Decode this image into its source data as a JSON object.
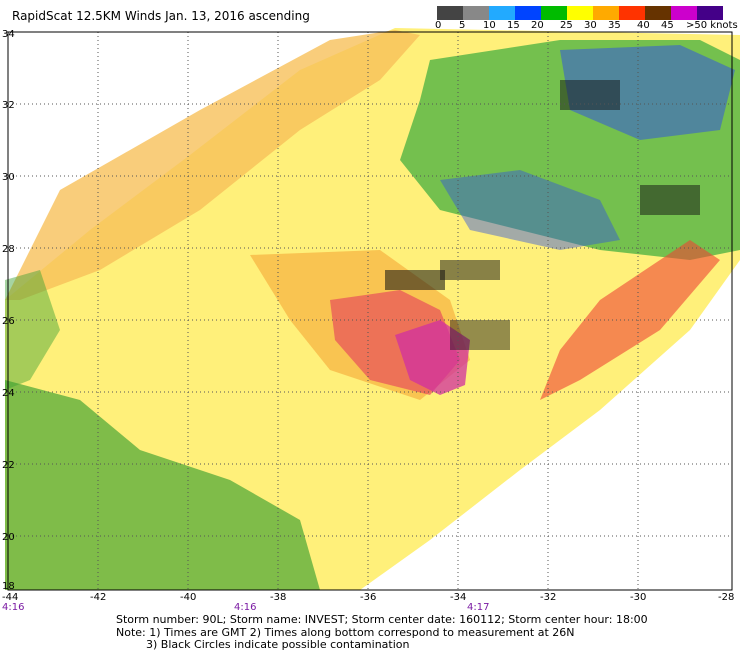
{
  "title": "RapidScat 12.5KM Winds Jan. 13, 2016 ascending",
  "colorbar": {
    "labels": [
      "0",
      "5",
      "10",
      "15",
      "20",
      "25",
      "30",
      "35",
      "40",
      "45",
      ">50 knots"
    ],
    "colors": [
      "#444444",
      "#888888",
      "#22aaff",
      "#0044ff",
      "#00bb00",
      "#ffff00",
      "#ffaa00",
      "#ff3300",
      "#663300",
      "#cc00cc",
      "#440088"
    ]
  },
  "axes": {
    "x_labels": [
      "-44",
      "-42",
      "-40",
      "-38",
      "-36",
      "-34",
      "-32",
      "-30",
      "-28"
    ],
    "y_labels": [
      "34",
      "32",
      "30",
      "28",
      "26",
      "24",
      "22",
      "20",
      "18"
    ]
  },
  "times": [
    "4:16",
    "4:16",
    "4:17"
  ],
  "footer": {
    "line1": "Storm number: 90L;  Storm name: INVEST;  Storm center date: 160112;  Storm center hour: 18:00",
    "line2": "Note: 1) Times are GMT  2) Times along bottom correspond to measurement at 26N",
    "line3": "3) Black Circles indicate possible contamination"
  }
}
